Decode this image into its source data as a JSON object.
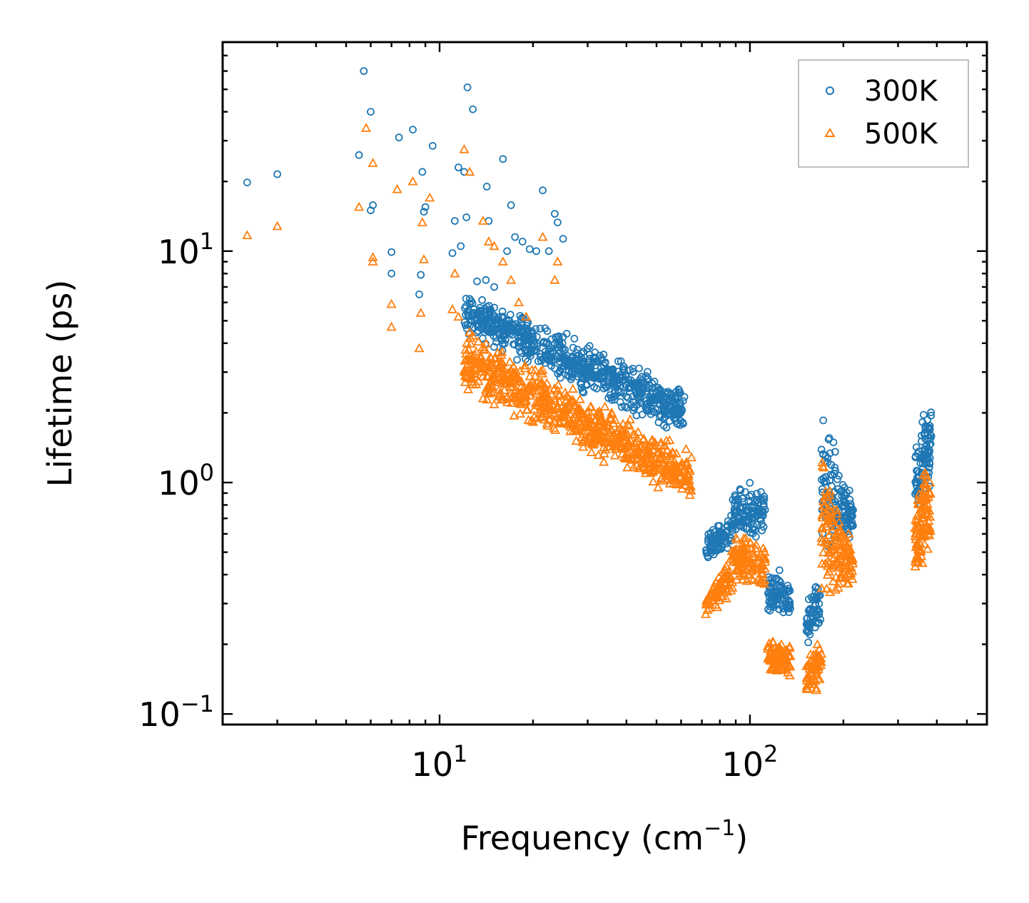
{
  "chart_data": {
    "type": "scatter",
    "title": "",
    "xlabel": "Frequency (cm",
    "xlabel_exponent": "−1",
    "xlabel_suffix": ")",
    "ylabel": "Lifetime (ps)",
    "xscale": "log",
    "yscale": "log",
    "xlim": [
      2.0,
      580
    ],
    "ylim": [
      0.09,
      80
    ],
    "x_ticks": [
      {
        "value": 10,
        "base": "10",
        "exp": "1"
      },
      {
        "value": 100,
        "base": "10",
        "exp": "2"
      }
    ],
    "y_ticks": [
      {
        "value": 0.1,
        "base": "10",
        "exp": "−1"
      },
      {
        "value": 1,
        "base": "10",
        "exp": "0"
      },
      {
        "value": 10,
        "base": "10",
        "exp": "1"
      }
    ],
    "legend_position": "top-right",
    "series": [
      {
        "name": "300K",
        "color": "#1f77b4",
        "marker": "circle",
        "points": [
          [
            2.4,
            19.8
          ],
          [
            3.0,
            21.5
          ],
          [
            5.5,
            26.0
          ],
          [
            5.7,
            60.0
          ],
          [
            6.0,
            40.0
          ],
          [
            6.0,
            15.0
          ],
          [
            6.1,
            15.8
          ],
          [
            7.0,
            9.9
          ],
          [
            7.0,
            8.0
          ],
          [
            7.4,
            31.0
          ],
          [
            8.2,
            33.5
          ],
          [
            8.6,
            6.5
          ],
          [
            8.7,
            7.9
          ],
          [
            8.8,
            22.0
          ],
          [
            8.9,
            14.8
          ],
          [
            9.0,
            15.5
          ],
          [
            9.5,
            28.5
          ],
          [
            11.0,
            9.8
          ],
          [
            11.2,
            13.5
          ],
          [
            11.5,
            23.0
          ],
          [
            11.7,
            10.5
          ],
          [
            12.0,
            22.0
          ],
          [
            12.2,
            14.0
          ],
          [
            12.3,
            51.0
          ],
          [
            12.8,
            41.0
          ],
          [
            13.2,
            7.4
          ],
          [
            14.1,
            7.5
          ],
          [
            14.2,
            19.0
          ],
          [
            14.4,
            13.5
          ],
          [
            15.0,
            7.0
          ],
          [
            16.0,
            25.0
          ],
          [
            16.5,
            10.0
          ],
          [
            17.0,
            15.8
          ],
          [
            17.5,
            11.5
          ],
          [
            18.5,
            11.0
          ],
          [
            19.5,
            10.2
          ],
          [
            20.5,
            10.0
          ],
          [
            21.5,
            18.3
          ],
          [
            22.5,
            10.0
          ],
          [
            23.5,
            14.5
          ],
          [
            24.0,
            13.3
          ],
          [
            25.0,
            11.3
          ]
        ],
        "clusters": [
          {
            "x_range": [
              12.0,
              62.0
            ],
            "y_start": [
              6.5,
              4.5
            ],
            "y_end": [
              2.5,
              1.6
            ],
            "count": 700
          },
          {
            "x_range": [
              72.0,
              88.0
            ],
            "y_start": [
              0.6,
              0.48
            ],
            "y_end": [
              0.72,
              0.52
            ],
            "count": 80
          },
          {
            "x_range": [
              88.0,
              112.0
            ],
            "y_start": [
              0.6,
              0.9
            ],
            "y_end": [
              0.55,
              1.0
            ],
            "count": 110
          },
          {
            "x_range": [
              114.0,
              135.0
            ],
            "y_start": [
              0.42,
              0.28
            ],
            "y_end": [
              0.38,
              0.26
            ],
            "count": 90
          },
          {
            "x_range": [
              152.0,
              170.0
            ],
            "y_start": [
              0.3,
              0.2
            ],
            "y_end": [
              0.38,
              0.25
            ],
            "count": 60
          },
          {
            "x_range": [
              170.0,
              215.0
            ],
            "y_start": [
              0.4,
              2.4
            ],
            "y_end": [
              0.6,
              0.85
            ],
            "count": 140
          },
          {
            "x_range": [
              340.0,
              385.0
            ],
            "y_start": [
              0.6,
              1.6
            ],
            "y_end": [
              1.0,
              2.5
            ],
            "count": 100
          }
        ]
      },
      {
        "name": "500K",
        "color": "#ff7f0e",
        "marker": "triangle",
        "points": [
          [
            2.4,
            11.7
          ],
          [
            3.0,
            12.8
          ],
          [
            5.5,
            15.5
          ],
          [
            5.8,
            34.0
          ],
          [
            6.1,
            9.0
          ],
          [
            6.1,
            9.4
          ],
          [
            6.1,
            24.0
          ],
          [
            7.0,
            5.9
          ],
          [
            7.0,
            4.7
          ],
          [
            7.3,
            18.5
          ],
          [
            8.2,
            20.0
          ],
          [
            8.6,
            3.8
          ],
          [
            8.7,
            5.4
          ],
          [
            8.8,
            13.3
          ],
          [
            8.9,
            9.2
          ],
          [
            9.3,
            17.0
          ],
          [
            11.0,
            5.6
          ],
          [
            11.2,
            8.0
          ],
          [
            11.5,
            5.2
          ],
          [
            12.0,
            27.5
          ],
          [
            12.5,
            22.0
          ],
          [
            12.8,
            4.3
          ],
          [
            13.8,
            13.5
          ],
          [
            14.4,
            11.0
          ],
          [
            15.0,
            10.5
          ],
          [
            16.0,
            9.0
          ],
          [
            17.0,
            7.5
          ],
          [
            18.0,
            6.0
          ],
          [
            19.0,
            5.2
          ],
          [
            21.5,
            11.5
          ],
          [
            23.5,
            7.5
          ],
          [
            24.0,
            9.0
          ]
        ],
        "clusters": [
          {
            "x_range": [
              12.0,
              65.0
            ],
            "y_start": [
              4.5,
              2.5
            ],
            "y_end": [
              1.3,
              0.85
            ],
            "count": 700
          },
          {
            "x_range": [
              72.0,
              88.0
            ],
            "y_start": [
              0.32,
              0.26
            ],
            "y_end": [
              0.5,
              0.33
            ],
            "count": 80
          },
          {
            "x_range": [
              88.0,
              112.0
            ],
            "y_start": [
              0.4,
              0.58
            ],
            "y_end": [
              0.35,
              0.55
            ],
            "count": 110
          },
          {
            "x_range": [
              114.0,
              135.0
            ],
            "y_start": [
              0.22,
              0.14
            ],
            "y_end": [
              0.2,
              0.15
            ],
            "count": 90
          },
          {
            "x_range": [
              152.0,
              170.0
            ],
            "y_start": [
              0.17,
              0.12
            ],
            "y_end": [
              0.22,
              0.14
            ],
            "count": 60
          },
          {
            "x_range": [
              170.0,
              215.0
            ],
            "y_start": [
              0.25,
              1.45
            ],
            "y_end": [
              0.38,
              0.5
            ],
            "count": 140
          },
          {
            "x_range": [
              340.0,
              385.0
            ],
            "y_start": [
              0.35,
              0.9
            ],
            "y_end": [
              0.55,
              1.5
            ],
            "count": 100
          }
        ]
      }
    ]
  }
}
